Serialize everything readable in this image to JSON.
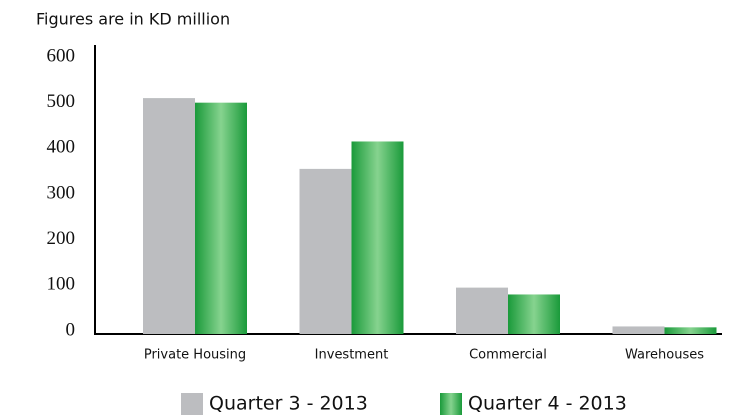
{
  "chart_data": {
    "type": "bar",
    "title": "Figures are in KD million",
    "categories": [
      "Private Housing",
      "Investment",
      "Commercial",
      "Warehouses"
    ],
    "series": [
      {
        "name": "Quarter 3 - 2013",
        "color": "#bcbdc0",
        "values": [
          510,
          355,
          95,
          10
        ]
      },
      {
        "name": "Quarter 4 - 2013",
        "color": "#1e9e3e",
        "values": [
          500,
          415,
          80,
          8
        ]
      }
    ],
    "ylim": [
      0,
      600
    ],
    "yticks": [
      0,
      100,
      200,
      300,
      400,
      500,
      600
    ],
    "grid": false
  }
}
